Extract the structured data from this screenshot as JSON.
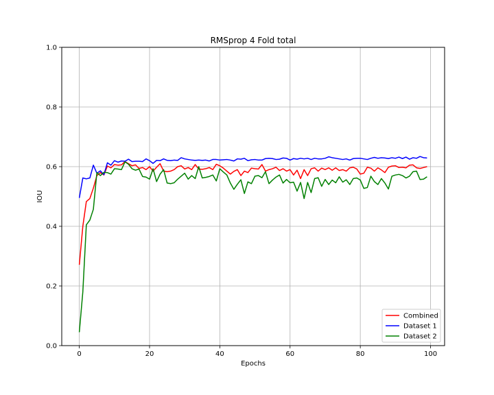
{
  "chart_data": {
    "type": "line",
    "title": "RMSprop 4 Fold total",
    "xlabel": "Epochs",
    "ylabel": "IOU",
    "xlim": [
      -5,
      104
    ],
    "ylim": [
      0.0,
      1.0
    ],
    "xticks": [
      0,
      20,
      40,
      60,
      80,
      100
    ],
    "yticks": [
      0.0,
      0.2,
      0.4,
      0.6,
      0.8,
      1.0
    ],
    "xtick_labels": [
      "0",
      "20",
      "40",
      "60",
      "80",
      "100"
    ],
    "ytick_labels": [
      "0.0",
      "0.2",
      "0.4",
      "0.6",
      "0.8",
      "1.0"
    ],
    "grid": true,
    "legend_position": "bottom-right",
    "series": [
      {
        "name": "Combined",
        "color": "#ff0000",
        "values": [
          0.271,
          0.4,
          0.483,
          0.493,
          0.528,
          0.57,
          0.58,
          0.572,
          0.602,
          0.596,
          0.607,
          0.605,
          0.606,
          0.617,
          0.61,
          0.603,
          0.606,
          0.594,
          0.597,
          0.59,
          0.6,
          0.585,
          0.598,
          0.61,
          0.585,
          0.583,
          0.585,
          0.59,
          0.6,
          0.603,
          0.592,
          0.597,
          0.59,
          0.607,
          0.592,
          0.591,
          0.593,
          0.597,
          0.59,
          0.608,
          0.603,
          0.595,
          0.585,
          0.575,
          0.584,
          0.59,
          0.57,
          0.585,
          0.58,
          0.595,
          0.593,
          0.592,
          0.607,
          0.585,
          0.59,
          0.593,
          0.598,
          0.587,
          0.593,
          0.585,
          0.59,
          0.572,
          0.588,
          0.56,
          0.59,
          0.57,
          0.593,
          0.596,
          0.585,
          0.595,
          0.59,
          0.596,
          0.588,
          0.596,
          0.587,
          0.59,
          0.585,
          0.596,
          0.598,
          0.592,
          0.575,
          0.578,
          0.598,
          0.595,
          0.585,
          0.596,
          0.589,
          0.58,
          0.598,
          0.602,
          0.603,
          0.597,
          0.598,
          0.596,
          0.605,
          0.606,
          0.596,
          0.594,
          0.597,
          0.6
        ]
      },
      {
        "name": "Dataset 1",
        "color": "#0000ff",
        "values": [
          0.495,
          0.562,
          0.559,
          0.562,
          0.605,
          0.578,
          0.586,
          0.573,
          0.613,
          0.605,
          0.62,
          0.615,
          0.619,
          0.618,
          0.625,
          0.617,
          0.618,
          0.618,
          0.617,
          0.626,
          0.62,
          0.611,
          0.621,
          0.62,
          0.626,
          0.621,
          0.62,
          0.622,
          0.621,
          0.63,
          0.626,
          0.624,
          0.622,
          0.621,
          0.622,
          0.621,
          0.622,
          0.619,
          0.624,
          0.624,
          0.622,
          0.623,
          0.624,
          0.622,
          0.619,
          0.626,
          0.625,
          0.628,
          0.62,
          0.623,
          0.624,
          0.622,
          0.622,
          0.627,
          0.628,
          0.627,
          0.624,
          0.625,
          0.629,
          0.628,
          0.622,
          0.627,
          0.625,
          0.628,
          0.626,
          0.628,
          0.624,
          0.628,
          0.626,
          0.626,
          0.628,
          0.633,
          0.63,
          0.628,
          0.626,
          0.624,
          0.626,
          0.622,
          0.627,
          0.628,
          0.628,
          0.626,
          0.624,
          0.628,
          0.631,
          0.628,
          0.63,
          0.629,
          0.627,
          0.63,
          0.628,
          0.632,
          0.627,
          0.632,
          0.625,
          0.63,
          0.628,
          0.634,
          0.63,
          0.629
        ]
      },
      {
        "name": "Dataset 2",
        "color": "#008000",
        "values": [
          0.045,
          0.18,
          0.405,
          0.421,
          0.457,
          0.58,
          0.57,
          0.581,
          0.58,
          0.575,
          0.593,
          0.592,
          0.59,
          0.616,
          0.608,
          0.593,
          0.588,
          0.592,
          0.567,
          0.565,
          0.558,
          0.593,
          0.55,
          0.575,
          0.59,
          0.545,
          0.543,
          0.546,
          0.558,
          0.568,
          0.578,
          0.558,
          0.57,
          0.56,
          0.6,
          0.562,
          0.564,
          0.567,
          0.572,
          0.552,
          0.593,
          0.582,
          0.572,
          0.545,
          0.524,
          0.541,
          0.556,
          0.51,
          0.549,
          0.543,
          0.568,
          0.57,
          0.563,
          0.583,
          0.543,
          0.555,
          0.565,
          0.572,
          0.545,
          0.557,
          0.546,
          0.548,
          0.518,
          0.547,
          0.493,
          0.547,
          0.513,
          0.56,
          0.563,
          0.534,
          0.557,
          0.54,
          0.555,
          0.546,
          0.566,
          0.548,
          0.556,
          0.54,
          0.56,
          0.562,
          0.555,
          0.527,
          0.53,
          0.568,
          0.55,
          0.54,
          0.56,
          0.545,
          0.525,
          0.568,
          0.572,
          0.574,
          0.57,
          0.562,
          0.568,
          0.583,
          0.585,
          0.557,
          0.558,
          0.566
        ]
      }
    ]
  }
}
